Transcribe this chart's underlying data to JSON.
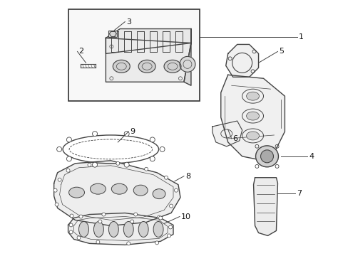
{
  "background_color": "#ffffff",
  "line_color": "#444444",
  "label_color": "#111111",
  "box_bg": "#f0f0f0",
  "figsize": [
    4.89,
    3.6
  ],
  "dpi": 100
}
